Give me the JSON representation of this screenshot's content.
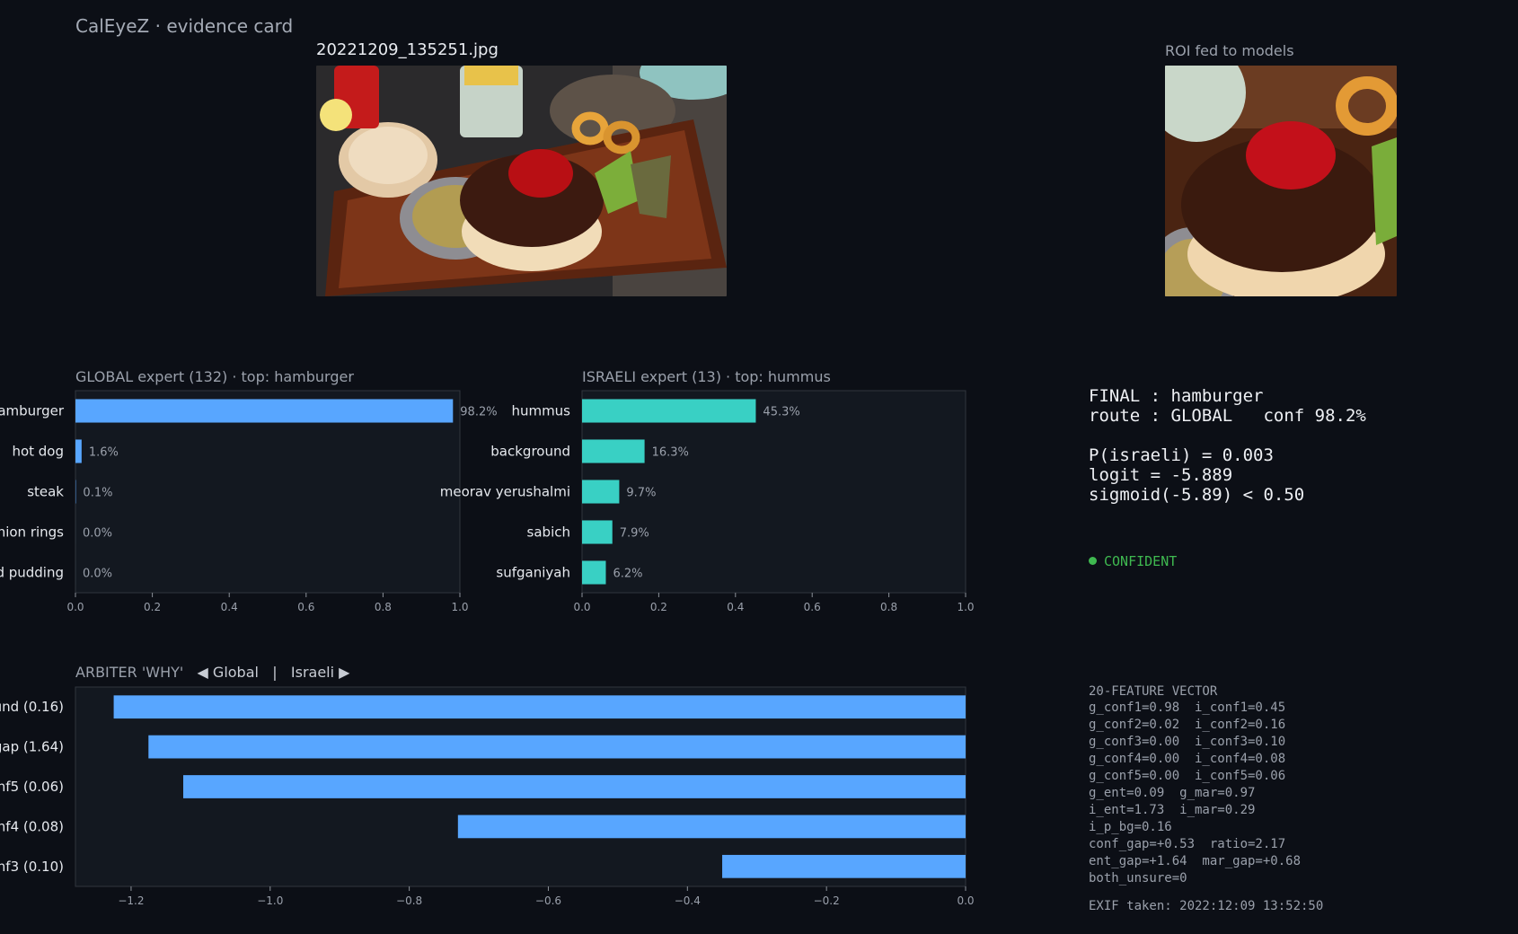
{
  "header": {
    "app_title": "CalEyeZ · evidence card",
    "photo_filename": "20221209_135251.jpg",
    "roi_caption": "ROI fed to models"
  },
  "images": {
    "main_photo": "food photo: burger patty with ketchup on a bun, dip bowl, fries cup, onion rings, soda can on a wooden board",
    "roi_photo": "cropped region of interest: burger patty with ketchup on bun"
  },
  "global_expert": {
    "title": "GLOBAL expert (132)  ·  top: hamburger"
  },
  "israeli_expert": {
    "title": "ISRAELI expert (13)  ·  top: hummus"
  },
  "arbiter": {
    "title_prefix": "ARBITER 'WHY'",
    "left_option": "◀ Global",
    "separator": "|",
    "right_option": "Israeli ▶"
  },
  "summary": {
    "final_line": "FINAL : hamburger",
    "route_line": "route : GLOBAL   conf 98.2%",
    "p_line": "P(israeli) = 0.003",
    "logit_line": "logit = -5.889",
    "sigmoid_line": "sigmoid(-5.89) < 0.50",
    "status": "CONFIDENT"
  },
  "feature_vector": {
    "title": "20-FEATURE VECTOR",
    "lines": [
      "g_conf1=0.98  i_conf1=0.45",
      "g_conf2=0.02  i_conf2=0.16",
      "g_conf3=0.00  i_conf3=0.10",
      "g_conf4=0.00  i_conf4=0.08",
      "g_conf5=0.00  i_conf5=0.06",
      "g_ent=0.09  g_mar=0.97",
      "i_ent=1.73  i_mar=0.29",
      "i_p_bg=0.16",
      "conf_gap=+0.53  ratio=2.17",
      "ent_gap=+1.64  mar_gap=+0.68",
      "both_unsure=0"
    ]
  },
  "exif": "EXIF taken: 2022:12:09 13:52:50",
  "colors": {
    "background": "#0c0f16",
    "panel": "#131820",
    "global_bar": "#58a6ff",
    "israeli_bar": "#39d0c4",
    "confident": "#3fb950"
  },
  "chart_data": [
    {
      "id": "global",
      "type": "bar",
      "orientation": "horizontal",
      "categories": [
        "hamburger",
        "hot dog",
        "steak",
        "onion rings",
        "bread pudding"
      ],
      "visible_category_labels": [
        "amburger",
        "hot dog",
        "steak",
        "nion rings",
        "d pudding"
      ],
      "values": [
        0.982,
        0.016,
        0.001,
        0.0,
        0.0
      ],
      "value_labels": [
        "98.2%",
        "1.6%",
        "0.1%",
        "0.0%",
        "0.0%"
      ],
      "xlim": [
        0,
        1
      ],
      "xticks": [
        0,
        0.2,
        0.4,
        0.6,
        0.8,
        1.0
      ],
      "xtick_labels": [
        "0.0",
        "0.2",
        "0.4",
        "0.6",
        "0.8",
        "1.0"
      ],
      "grid": false
    },
    {
      "id": "israeli",
      "type": "bar",
      "orientation": "horizontal",
      "categories": [
        "hummus",
        "background",
        "meorav yerushalmi",
        "sabich",
        "sufganiyah"
      ],
      "values": [
        0.453,
        0.163,
        0.097,
        0.079,
        0.062
      ],
      "value_labels": [
        "45.3%",
        "16.3%",
        "9.7%",
        "7.9%",
        "6.2%"
      ],
      "xlim": [
        0,
        1
      ],
      "xticks": [
        0,
        0.2,
        0.4,
        0.6,
        0.8,
        1.0
      ],
      "xtick_labels": [
        "0.0",
        "0.2",
        "0.4",
        "0.6",
        "0.8",
        "1.0"
      ],
      "grid": false
    },
    {
      "id": "arbiter",
      "type": "bar",
      "orientation": "horizontal",
      "visible_category_labels": [
        "und (0.16)",
        "gap (1.64)",
        "onf5 (0.06)",
        "onf4 (0.08)",
        "onf3 (0.10)"
      ],
      "values": [
        -1.225,
        -1.175,
        -1.125,
        -0.73,
        -0.35
      ],
      "xlim": [
        -1.28,
        0.0
      ],
      "xticks": [
        -1.2,
        -1.0,
        -0.8,
        -0.6,
        -0.4,
        -0.2,
        0.0
      ],
      "xtick_labels": [
        "−1.2",
        "−1.0",
        "−0.8",
        "−0.6",
        "−0.4",
        "−0.2",
        "0.0"
      ],
      "grid": false
    }
  ]
}
